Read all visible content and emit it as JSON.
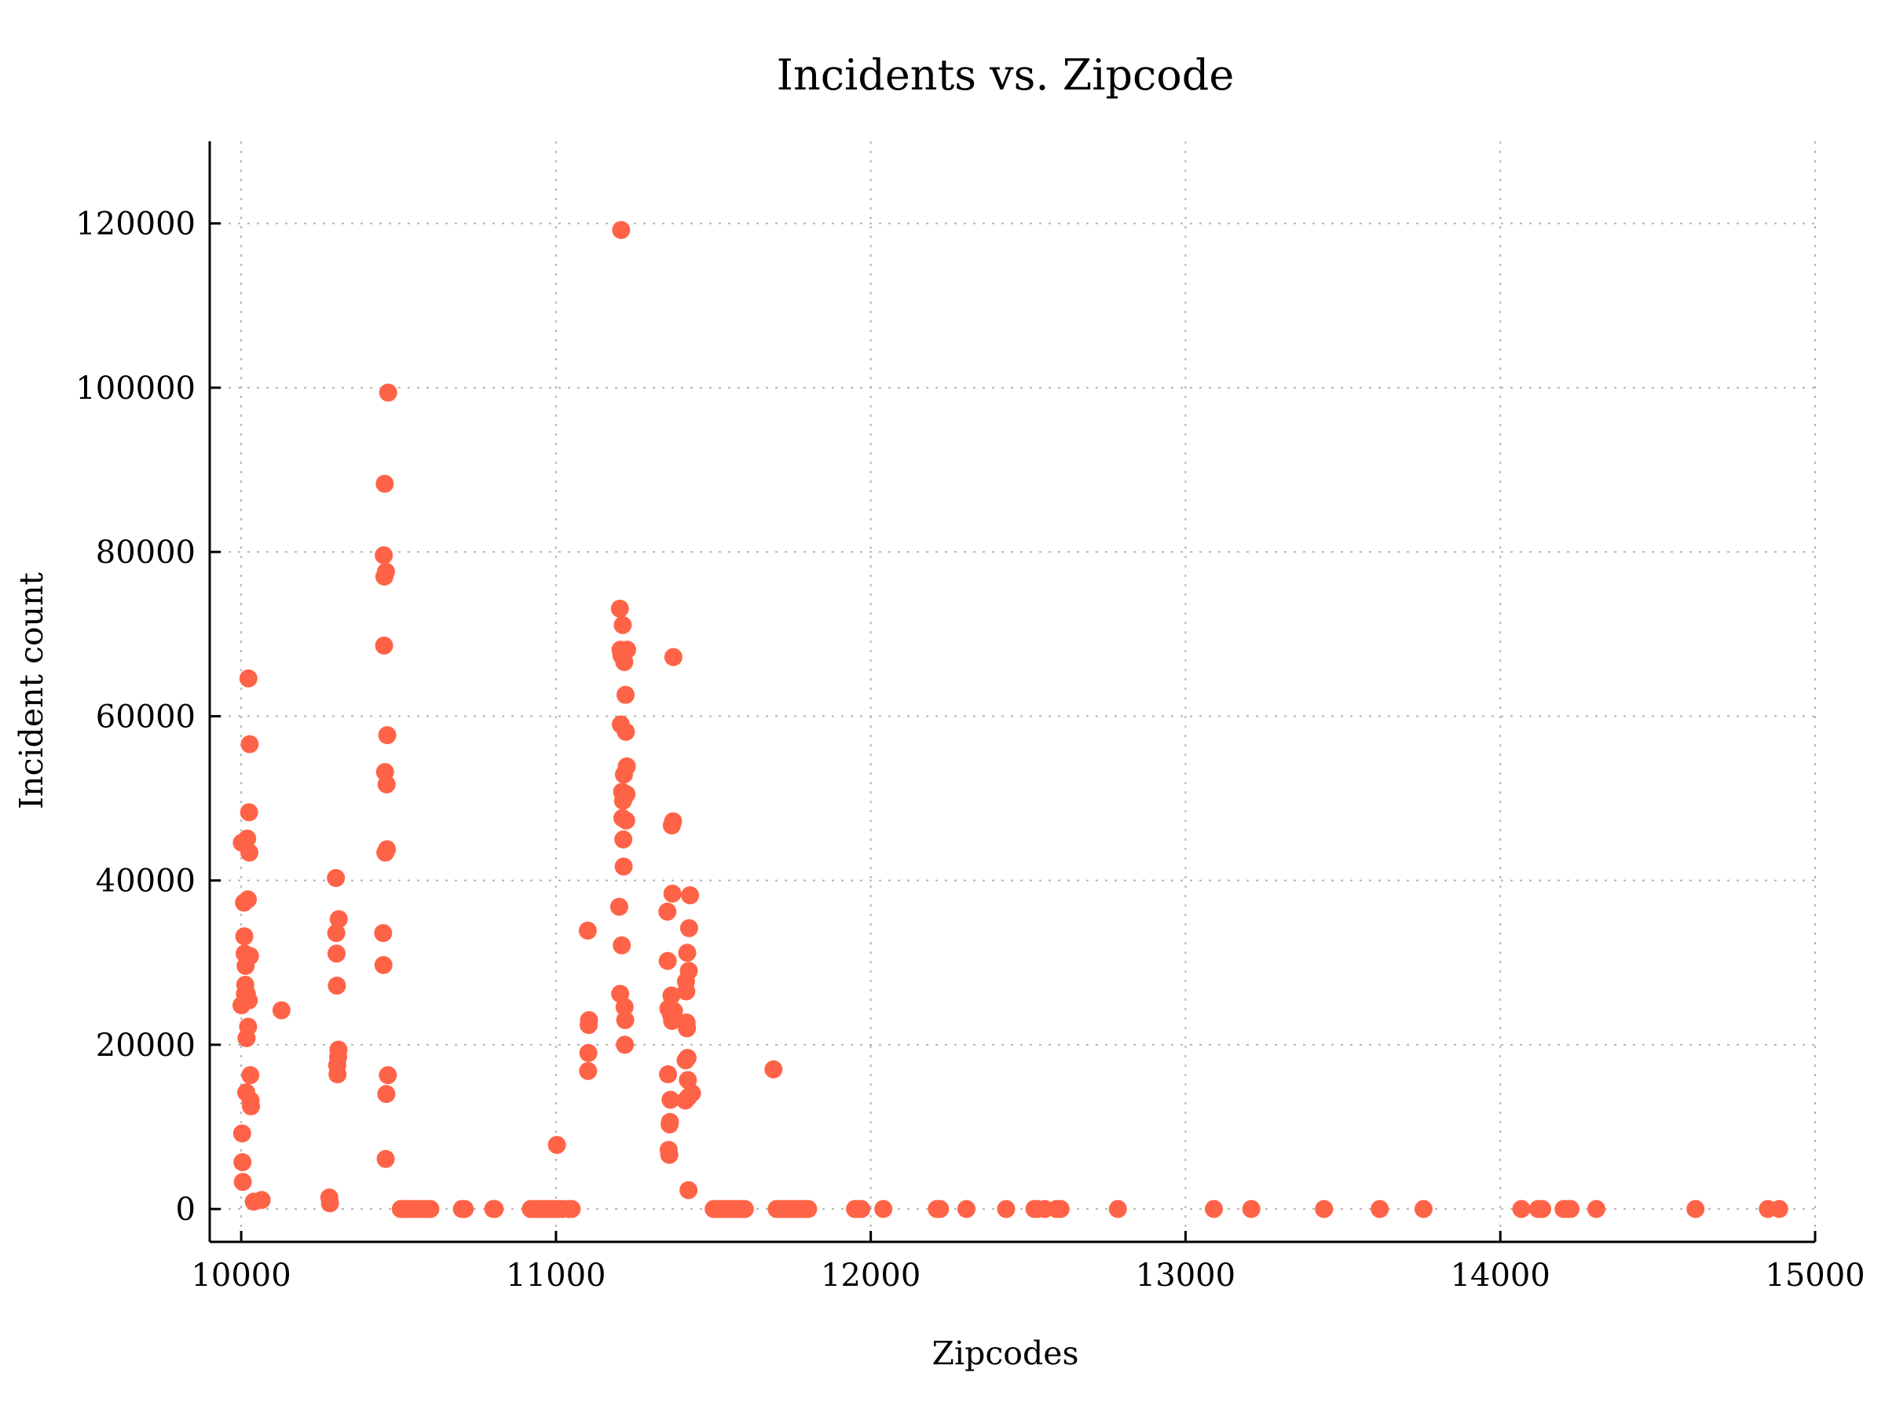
{
  "chart_data": {
    "type": "scatter",
    "title": "Incidents vs. Zipcode",
    "xlabel": "Zipcodes",
    "ylabel": "Incident count",
    "xlim": [
      9900,
      15000
    ],
    "ylim": [
      -4000,
      130000
    ],
    "xticks": [
      10000,
      11000,
      12000,
      13000,
      14000,
      15000
    ],
    "yticks": [
      0,
      20000,
      40000,
      60000,
      80000,
      100000,
      120000
    ],
    "grid": true,
    "legend": "none",
    "marker_color": "#ff6347",
    "points": [
      {
        "x": 10001,
        "y": 24800
      },
      {
        "x": 10002,
        "y": 44600
      },
      {
        "x": 10003,
        "y": 9200
      },
      {
        "x": 10004,
        "y": 5700
      },
      {
        "x": 10005,
        "y": 3300
      },
      {
        "x": 10009,
        "y": 37300
      },
      {
        "x": 10010,
        "y": 33200
      },
      {
        "x": 10011,
        "y": 31100
      },
      {
        "x": 10012,
        "y": 26200
      },
      {
        "x": 10013,
        "y": 27300
      },
      {
        "x": 10014,
        "y": 29600
      },
      {
        "x": 10016,
        "y": 14200
      },
      {
        "x": 10017,
        "y": 20800
      },
      {
        "x": 10018,
        "y": 26200
      },
      {
        "x": 10019,
        "y": 45100
      },
      {
        "x": 10021,
        "y": 37700
      },
      {
        "x": 10022,
        "y": 22200
      },
      {
        "x": 10023,
        "y": 64600
      },
      {
        "x": 10024,
        "y": 25400
      },
      {
        "x": 10025,
        "y": 48300
      },
      {
        "x": 10026,
        "y": 43400
      },
      {
        "x": 10027,
        "y": 56600
      },
      {
        "x": 10028,
        "y": 30800
      },
      {
        "x": 10029,
        "y": 16300
      },
      {
        "x": 10030,
        "y": 13200
      },
      {
        "x": 10031,
        "y": 12500
      },
      {
        "x": 10040,
        "y": 900
      },
      {
        "x": 10065,
        "y": 1100
      },
      {
        "x": 10128,
        "y": 24200
      },
      {
        "x": 10280,
        "y": 1400
      },
      {
        "x": 10282,
        "y": 700
      },
      {
        "x": 10301,
        "y": 40300
      },
      {
        "x": 10302,
        "y": 33600
      },
      {
        "x": 10303,
        "y": 31100
      },
      {
        "x": 10304,
        "y": 27200
      },
      {
        "x": 10305,
        "y": 17500
      },
      {
        "x": 10306,
        "y": 16400
      },
      {
        "x": 10308,
        "y": 18500
      },
      {
        "x": 10309,
        "y": 19400
      },
      {
        "x": 10310,
        "y": 35300
      },
      {
        "x": 10451,
        "y": 33600
      },
      {
        "x": 10452,
        "y": 29700
      },
      {
        "x": 10453,
        "y": 79600
      },
      {
        "x": 10454,
        "y": 68600
      },
      {
        "x": 10455,
        "y": 77000
      },
      {
        "x": 10456,
        "y": 88300
      },
      {
        "x": 10457,
        "y": 53200
      },
      {
        "x": 10458,
        "y": 43400
      },
      {
        "x": 10459,
        "y": 6100
      },
      {
        "x": 10460,
        "y": 77600
      },
      {
        "x": 10461,
        "y": 14000
      },
      {
        "x": 10462,
        "y": 51700
      },
      {
        "x": 10463,
        "y": 43800
      },
      {
        "x": 10464,
        "y": 57700
      },
      {
        "x": 10466,
        "y": 16300
      },
      {
        "x": 10467,
        "y": 99400
      },
      {
        "x": 10507,
        "y": 0
      },
      {
        "x": 10514,
        "y": 0
      },
      {
        "x": 10520,
        "y": 0
      },
      {
        "x": 10530,
        "y": 0
      },
      {
        "x": 10543,
        "y": 0
      },
      {
        "x": 10550,
        "y": 0
      },
      {
        "x": 10562,
        "y": 0
      },
      {
        "x": 10570,
        "y": 0
      },
      {
        "x": 10583,
        "y": 0
      },
      {
        "x": 10591,
        "y": 0
      },
      {
        "x": 10601,
        "y": 0
      },
      {
        "x": 10701,
        "y": 0
      },
      {
        "x": 10710,
        "y": 0
      },
      {
        "x": 10801,
        "y": 0
      },
      {
        "x": 10805,
        "y": 0
      },
      {
        "x": 10920,
        "y": 0
      },
      {
        "x": 10930,
        "y": 0
      },
      {
        "x": 10940,
        "y": 0
      },
      {
        "x": 10950,
        "y": 0
      },
      {
        "x": 10960,
        "y": 0
      },
      {
        "x": 10970,
        "y": 0
      },
      {
        "x": 10980,
        "y": 0
      },
      {
        "x": 10990,
        "y": 0
      },
      {
        "x": 11001,
        "y": 0
      },
      {
        "x": 11003,
        "y": 7800
      },
      {
        "x": 11010,
        "y": 0
      },
      {
        "x": 11020,
        "y": 0
      },
      {
        "x": 11040,
        "y": 0
      },
      {
        "x": 11050,
        "y": 0
      },
      {
        "x": 11101,
        "y": 33900
      },
      {
        "x": 11102,
        "y": 16800
      },
      {
        "x": 11103,
        "y": 19000
      },
      {
        "x": 11104,
        "y": 22400
      },
      {
        "x": 11105,
        "y": 23000
      },
      {
        "x": 11201,
        "y": 36800
      },
      {
        "x": 11203,
        "y": 73100
      },
      {
        "x": 11204,
        "y": 26200
      },
      {
        "x": 11205,
        "y": 68100
      },
      {
        "x": 11206,
        "y": 59000
      },
      {
        "x": 11207,
        "y": 119200
      },
      {
        "x": 11208,
        "y": 67400
      },
      {
        "x": 11209,
        "y": 32100
      },
      {
        "x": 11210,
        "y": 50800
      },
      {
        "x": 11211,
        "y": 47600
      },
      {
        "x": 11212,
        "y": 71100
      },
      {
        "x": 11213,
        "y": 49700
      },
      {
        "x": 11214,
        "y": 45000
      },
      {
        "x": 11215,
        "y": 41700
      },
      {
        "x": 11216,
        "y": 52900
      },
      {
        "x": 11217,
        "y": 66600
      },
      {
        "x": 11218,
        "y": 24600
      },
      {
        "x": 11219,
        "y": 20000
      },
      {
        "x": 11220,
        "y": 23000
      },
      {
        "x": 11221,
        "y": 62600
      },
      {
        "x": 11222,
        "y": 58100
      },
      {
        "x": 11223,
        "y": 47300
      },
      {
        "x": 11224,
        "y": 50500
      },
      {
        "x": 11225,
        "y": 53900
      },
      {
        "x": 11226,
        "y": 68100
      },
      {
        "x": 11354,
        "y": 36200
      },
      {
        "x": 11355,
        "y": 30200
      },
      {
        "x": 11356,
        "y": 16400
      },
      {
        "x": 11357,
        "y": 24400
      },
      {
        "x": 11358,
        "y": 7200
      },
      {
        "x": 11360,
        "y": 6600
      },
      {
        "x": 11361,
        "y": 10300
      },
      {
        "x": 11362,
        "y": 10600
      },
      {
        "x": 11364,
        "y": 13300
      },
      {
        "x": 11365,
        "y": 23700
      },
      {
        "x": 11366,
        "y": 24400
      },
      {
        "x": 11367,
        "y": 26000
      },
      {
        "x": 11368,
        "y": 46700
      },
      {
        "x": 11369,
        "y": 22900
      },
      {
        "x": 11370,
        "y": 38400
      },
      {
        "x": 11372,
        "y": 47200
      },
      {
        "x": 11373,
        "y": 67200
      },
      {
        "x": 11374,
        "y": 23100
      },
      {
        "x": 11375,
        "y": 24100
      },
      {
        "x": 11411,
        "y": 13200
      },
      {
        "x": 11412,
        "y": 18100
      },
      {
        "x": 11413,
        "y": 27700
      },
      {
        "x": 11414,
        "y": 26500
      },
      {
        "x": 11415,
        "y": 22700
      },
      {
        "x": 11416,
        "y": 22000
      },
      {
        "x": 11417,
        "y": 31200
      },
      {
        "x": 11418,
        "y": 18400
      },
      {
        "x": 11419,
        "y": 15700
      },
      {
        "x": 11420,
        "y": 13600
      },
      {
        "x": 11421,
        "y": 2300
      },
      {
        "x": 11422,
        "y": 29000
      },
      {
        "x": 11423,
        "y": 34200
      },
      {
        "x": 11426,
        "y": 38200
      },
      {
        "x": 11432,
        "y": 14100
      },
      {
        "x": 11501,
        "y": 0
      },
      {
        "x": 11510,
        "y": 0
      },
      {
        "x": 11520,
        "y": 0
      },
      {
        "x": 11530,
        "y": 0
      },
      {
        "x": 11540,
        "y": 0
      },
      {
        "x": 11550,
        "y": 0
      },
      {
        "x": 11560,
        "y": 0
      },
      {
        "x": 11570,
        "y": 0
      },
      {
        "x": 11580,
        "y": 0
      },
      {
        "x": 11590,
        "y": 0
      },
      {
        "x": 11600,
        "y": 0
      },
      {
        "x": 11691,
        "y": 17000
      },
      {
        "x": 11701,
        "y": 0
      },
      {
        "x": 11710,
        "y": 0
      },
      {
        "x": 11720,
        "y": 0
      },
      {
        "x": 11730,
        "y": 0
      },
      {
        "x": 11740,
        "y": 0
      },
      {
        "x": 11750,
        "y": 0
      },
      {
        "x": 11760,
        "y": 0
      },
      {
        "x": 11770,
        "y": 0
      },
      {
        "x": 11780,
        "y": 0
      },
      {
        "x": 11790,
        "y": 0
      },
      {
        "x": 11801,
        "y": 0
      },
      {
        "x": 11950,
        "y": 0
      },
      {
        "x": 11960,
        "y": 0
      },
      {
        "x": 11970,
        "y": 0
      },
      {
        "x": 12040,
        "y": 0
      },
      {
        "x": 12210,
        "y": 0
      },
      {
        "x": 12220,
        "y": 0
      },
      {
        "x": 12304,
        "y": 0
      },
      {
        "x": 12430,
        "y": 0
      },
      {
        "x": 12520,
        "y": 0
      },
      {
        "x": 12530,
        "y": 0
      },
      {
        "x": 12553,
        "y": 0
      },
      {
        "x": 12590,
        "y": 0
      },
      {
        "x": 12603,
        "y": 0
      },
      {
        "x": 12785,
        "y": 0
      },
      {
        "x": 13090,
        "y": 0
      },
      {
        "x": 13209,
        "y": 0
      },
      {
        "x": 13440,
        "y": 0
      },
      {
        "x": 13617,
        "y": 0
      },
      {
        "x": 13756,
        "y": 0
      },
      {
        "x": 14067,
        "y": 0
      },
      {
        "x": 14120,
        "y": 0
      },
      {
        "x": 14133,
        "y": 0
      },
      {
        "x": 14201,
        "y": 0
      },
      {
        "x": 14215,
        "y": 0
      },
      {
        "x": 14223,
        "y": 0
      },
      {
        "x": 14305,
        "y": 0
      },
      {
        "x": 14620,
        "y": 0
      },
      {
        "x": 14850,
        "y": 0
      },
      {
        "x": 14886,
        "y": 0
      }
    ]
  }
}
